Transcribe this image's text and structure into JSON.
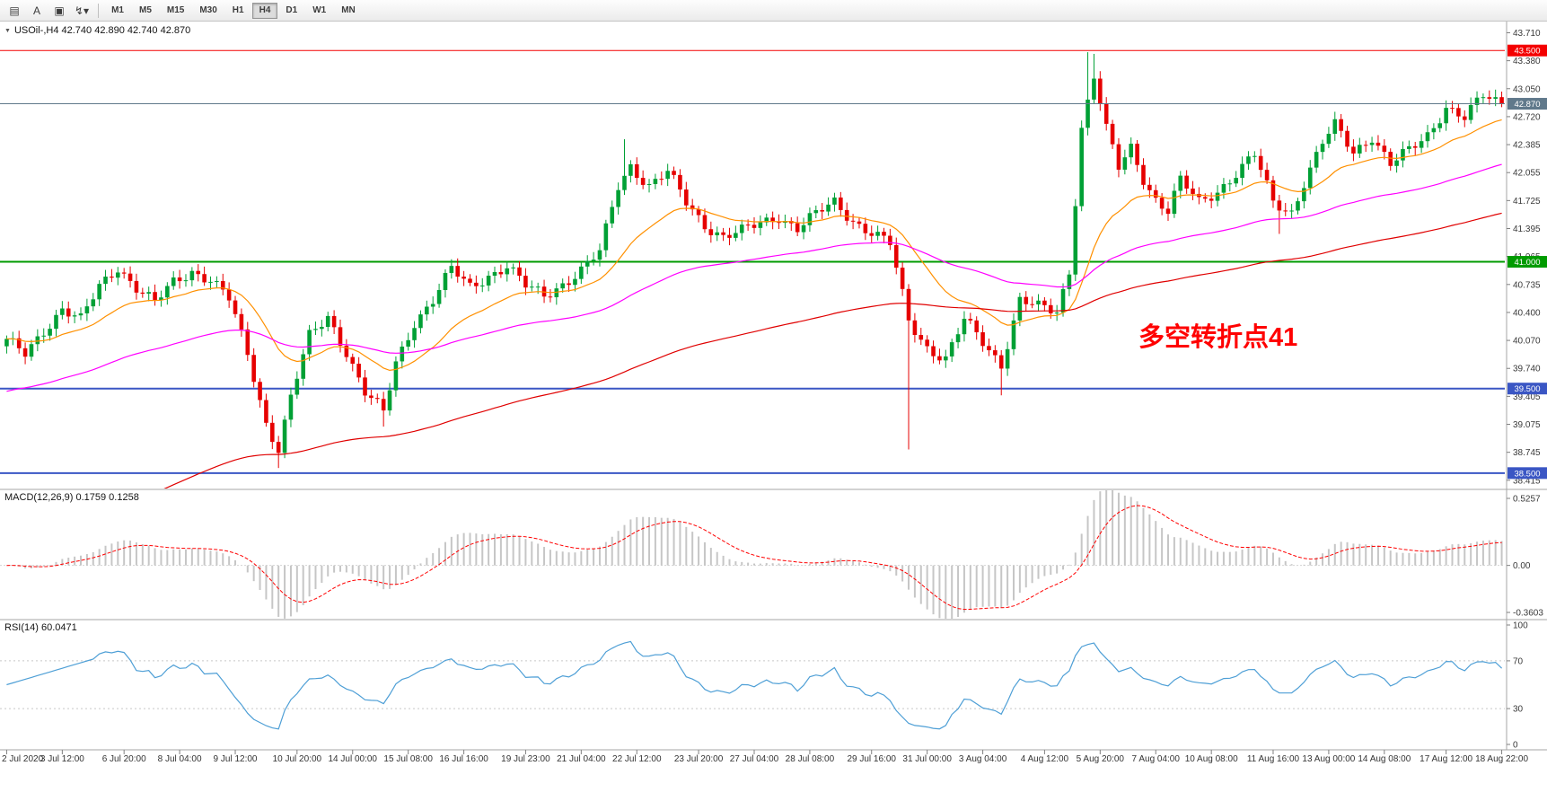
{
  "toolbar": {
    "tools": [
      {
        "name": "chart-window-icon",
        "glyph": "▤"
      },
      {
        "name": "text-cursor-tool-icon",
        "glyph": "A"
      },
      {
        "name": "crosshair-tool-icon",
        "glyph": "▣"
      },
      {
        "name": "line-studies-tool-icon",
        "glyph": "↯",
        "dropdown": "▾"
      }
    ],
    "timeframes": [
      "M1",
      "M5",
      "M15",
      "M30",
      "H1",
      "H4",
      "D1",
      "W1",
      "MN"
    ],
    "active_timeframe": "H4"
  },
  "chart": {
    "collapse_icon": "▼",
    "title": "USOil-,H4 42.740 42.890 42.740 42.870"
  },
  "chart_data": {
    "type": "candlestick",
    "symbol": "USOil-",
    "timeframe": "H4",
    "ohlc": {
      "open": "42.740",
      "high": "42.890",
      "low": "42.740",
      "close": "42.870"
    },
    "last_close": 42.87,
    "colors": {
      "up": "#00a035",
      "down": "#e60000"
    },
    "y_axis": {
      "top_price": 43.71,
      "bottom_price": 38.415,
      "tick_labels": [
        "43.710",
        "43.380",
        "43.050",
        "42.720",
        "42.385",
        "42.055",
        "41.725",
        "41.395",
        "41.065",
        "40.735",
        "40.400",
        "40.070",
        "39.740",
        "39.405",
        "39.075",
        "38.745",
        "38.415"
      ]
    },
    "x_axis": {
      "labels": [
        "2 Jul 2020",
        "3 Jul 12:00",
        "6 Jul 20:00",
        "8 Jul 04:00",
        "9 Jul 12:00",
        "10 Jul 20:00",
        "14 Jul 00:00",
        "15 Jul 08:00",
        "16 Jul 16:00",
        "19 Jul 23:00",
        "21 Jul 04:00",
        "22 Jul 12:00",
        "23 Jul 20:00",
        "27 Jul 04:00",
        "28 Jul 08:00",
        "29 Jul 16:00",
        "31 Jul 00:00",
        "3 Aug 04:00",
        "4 Aug 12:00",
        "5 Aug 20:00",
        "7 Aug 04:00",
        "10 Aug 08:00",
        "11 Aug 16:00",
        "13 Aug 00:00",
        "14 Aug 08:00",
        "17 Aug 12:00",
        "18 Aug 22:00"
      ]
    },
    "levels": [
      {
        "price": 43.5,
        "label": "43.500",
        "color": "#f40000",
        "width": 1
      },
      {
        "price": 41.0,
        "label": "41.000",
        "color": "#009b00",
        "width": 2
      },
      {
        "price": 39.5,
        "label": "39.500",
        "color": "#3a56c4",
        "width": 2
      },
      {
        "price": 38.5,
        "label": "38.500",
        "color": "#3a56c4",
        "width": 2
      }
    ],
    "bid": {
      "price": 42.87,
      "label": "42.870",
      "color": "#60798b"
    },
    "annotation": {
      "text": "多空转折点41",
      "color": "#ff0000"
    },
    "moving_averages": [
      {
        "name": "fast",
        "color": "#ff9000"
      },
      {
        "name": "medium",
        "color": "#ff00ff"
      },
      {
        "name": "slow",
        "color": "#e00000"
      }
    ],
    "indicators": {
      "macd": {
        "label": "MACD(12,26,9) 0.1759 0.1258",
        "values": [
          "0.1759",
          "0.1258"
        ],
        "axis_labels": [
          "0.5257",
          "0.00",
          "-0.3603"
        ],
        "range": [
          -0.38,
          0.55
        ],
        "histogram_color": "#c6c6c6",
        "signal_color": "#ff0000"
      },
      "rsi": {
        "label": "RSI(14) 60.0471",
        "value": "60.0471",
        "axis_labels": [
          "100",
          "70",
          "30",
          "0"
        ],
        "levels": [
          70,
          30
        ],
        "line_color": "#4e9fd6"
      }
    },
    "candles": {
      "count": 243,
      "first_open": 40.0,
      "close_anchors": [
        [
          0,
          40.05
        ],
        [
          3,
          39.9
        ],
        [
          6,
          40.2
        ],
        [
          9,
          40.45
        ],
        [
          12,
          40.3
        ],
        [
          15,
          40.7
        ],
        [
          18,
          40.95
        ],
        [
          21,
          40.7
        ],
        [
          24,
          40.5
        ],
        [
          27,
          40.75
        ],
        [
          30,
          40.9
        ],
        [
          33,
          40.8
        ],
        [
          36,
          40.55
        ],
        [
          39,
          39.9
        ],
        [
          42,
          39.1
        ],
        [
          44,
          38.8
        ],
        [
          46,
          39.4
        ],
        [
          49,
          40.1
        ],
        [
          52,
          40.35
        ],
        [
          55,
          39.95
        ],
        [
          58,
          39.45
        ],
        [
          61,
          39.2
        ],
        [
          63,
          39.8
        ],
        [
          66,
          40.3
        ],
        [
          69,
          40.55
        ],
        [
          72,
          40.9
        ],
        [
          75,
          40.7
        ],
        [
          78,
          40.85
        ],
        [
          81,
          40.95
        ],
        [
          84,
          40.7
        ],
        [
          87,
          40.6
        ],
        [
          90,
          40.75
        ],
        [
          93,
          40.9
        ],
        [
          96,
          41.1
        ],
        [
          99,
          41.9
        ],
        [
          101,
          42.15
        ],
        [
          104,
          41.9
        ],
        [
          107,
          42.05
        ],
        [
          110,
          41.7
        ],
        [
          113,
          41.45
        ],
        [
          116,
          41.3
        ],
        [
          119,
          41.35
        ],
        [
          122,
          41.45
        ],
        [
          125,
          41.55
        ],
        [
          128,
          41.4
        ],
        [
          131,
          41.55
        ],
        [
          134,
          41.7
        ],
        [
          137,
          41.5
        ],
        [
          140,
          41.35
        ],
        [
          143,
          41.2
        ],
        [
          146,
          40.3
        ],
        [
          149,
          40.0
        ],
        [
          152,
          39.85
        ],
        [
          155,
          40.3
        ],
        [
          158,
          40.05
        ],
        [
          161,
          39.8
        ],
        [
          164,
          40.55
        ],
        [
          167,
          40.45
        ],
        [
          170,
          40.4
        ],
        [
          172,
          40.9
        ],
        [
          174,
          42.6
        ],
        [
          176,
          43.2
        ],
        [
          178,
          42.55
        ],
        [
          180,
          42.1
        ],
        [
          182,
          42.35
        ],
        [
          184,
          42.0
        ],
        [
          186,
          41.75
        ],
        [
          188,
          41.6
        ],
        [
          190,
          41.95
        ],
        [
          193,
          41.7
        ],
        [
          196,
          41.85
        ],
        [
          199,
          42.05
        ],
        [
          202,
          42.25
        ],
        [
          205,
          41.7
        ],
        [
          208,
          41.6
        ],
        [
          210,
          41.95
        ],
        [
          213,
          42.4
        ],
        [
          215,
          42.6
        ],
        [
          218,
          42.3
        ],
        [
          221,
          42.5
        ],
        [
          224,
          42.15
        ],
        [
          227,
          42.3
        ],
        [
          230,
          42.5
        ],
        [
          233,
          42.85
        ],
        [
          236,
          42.7
        ],
        [
          239,
          42.95
        ],
        [
          242,
          42.87
        ]
      ],
      "wick_overrides": {
        "44": {
          "low": 38.56
        },
        "61": {
          "low": 39.05
        },
        "100": {
          "high": 42.45
        },
        "146": {
          "low": 38.78
        },
        "161": {
          "low": 39.42
        },
        "175": {
          "high": 43.48
        },
        "176": {
          "high": 43.46
        },
        "206": {
          "low": 41.33
        }
      }
    }
  }
}
